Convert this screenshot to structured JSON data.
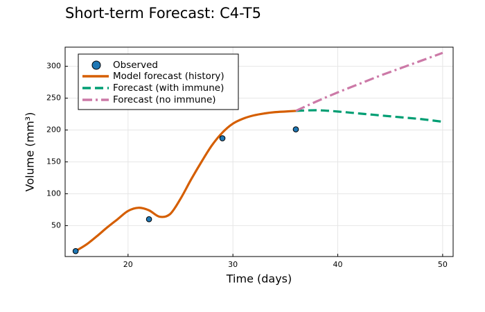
{
  "chart_data": {
    "type": "line",
    "title": "Short-term Forecast: C4-T5",
    "xlabel": "Time (days)",
    "ylabel": "Volume (mm³)",
    "xlim": [
      14.0,
      51.0
    ],
    "ylim": [
      1.5,
      330.0
    ],
    "x_ticks": [
      20,
      30,
      40,
      50
    ],
    "y_ticks": [
      50,
      100,
      150,
      200,
      250,
      300
    ],
    "grid": true,
    "legend_position": "top-left",
    "series": [
      {
        "name": "Observed",
        "kind": "scatter",
        "color": "#1f77b4",
        "x": [
          15,
          22,
          29,
          36
        ],
        "y": [
          10,
          60,
          187,
          201
        ]
      },
      {
        "name": "Model forecast (history)",
        "kind": "line",
        "style": "solid",
        "color": "#d55e00",
        "x": [
          15,
          16,
          17,
          18,
          19,
          20,
          21,
          22,
          23,
          24,
          25,
          26,
          27,
          28,
          29,
          30,
          31,
          32,
          33,
          34,
          35,
          36
        ],
        "y": [
          10,
          20,
          33,
          47,
          60,
          73,
          78,
          74,
          64,
          68,
          92,
          122,
          150,
          176,
          196,
          210,
          218,
          223,
          226,
          228,
          229,
          230
        ]
      },
      {
        "name": "Forecast (with immune)",
        "kind": "line",
        "style": "dashed",
        "color": "#009e73",
        "x": [
          36,
          38,
          40,
          42,
          44,
          46,
          48,
          50
        ],
        "y": [
          230,
          231,
          229,
          226,
          223,
          220,
          217,
          213
        ]
      },
      {
        "name": "Forecast (no immune)",
        "kind": "line",
        "style": "dashdot",
        "color": "#cc79a7",
        "x": [
          36,
          38,
          40,
          42,
          44,
          46,
          48,
          50
        ],
        "y": [
          230,
          245,
          259,
          272,
          285,
          297,
          309,
          321
        ]
      }
    ]
  }
}
